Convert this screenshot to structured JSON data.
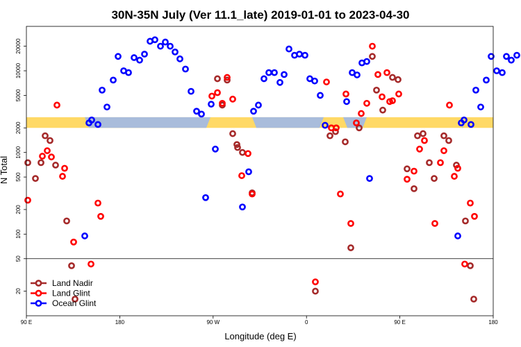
{
  "chart_data": {
    "type": "scatter",
    "title": "30N-35N July (Ver 11.1_late)   2019-01-01 to 2023-04-30",
    "xlabel": "Longitude (deg E)",
    "ylabel": "N Total",
    "y_scale": "log",
    "ylim": [
      10,
      35000
    ],
    "x_ticks": [
      {
        "label": "90 E"
      },
      {
        "label": "180"
      },
      {
        "label": "90 W"
      },
      {
        "label": "0"
      },
      {
        "label": "90 E"
      },
      {
        "label": "180"
      }
    ],
    "y_ticks": [
      {
        "label": "20",
        "value": 20
      },
      {
        "label": "50",
        "value": 50
      },
      {
        "label": "100",
        "value": 100
      },
      {
        "label": "200",
        "value": 200
      },
      {
        "label": "500",
        "value": 500
      },
      {
        "label": "1000",
        "value": 1000
      },
      {
        "label": "2000",
        "value": 2000
      },
      {
        "label": "5000",
        "value": 5000
      },
      {
        "label": "10000",
        "value": 10000
      },
      {
        "label": "20000",
        "value": 20000
      }
    ],
    "reference_line": 50,
    "legend_position": "bottom-left",
    "series": [
      {
        "name": "Land Nadir",
        "color": "#a52a2a",
        "points": [
          [
            2,
            750
          ],
          [
            13,
            480
          ],
          [
            21,
            750
          ],
          [
            27,
            1600
          ],
          [
            34,
            1400
          ],
          [
            42,
            700
          ],
          [
            58,
            145
          ],
          [
            65,
            41
          ],
          [
            70,
            16
          ],
          [
            275,
            8000
          ],
          [
            282,
            3800
          ],
          [
            289,
            7700
          ],
          [
            297,
            1700
          ],
          [
            303,
            1250
          ],
          [
            304,
            1150
          ],
          [
            311,
            1000
          ],
          [
            325,
            320
          ],
          [
            416,
            20
          ],
          [
            437,
            1600
          ],
          [
            445,
            1800
          ],
          [
            459,
            1350
          ],
          [
            467,
            68
          ],
          [
            479,
            2000
          ],
          [
            498,
            15000
          ],
          [
            504,
            5800
          ],
          [
            513,
            3300
          ],
          [
            527,
            8300
          ],
          [
            535,
            7800
          ],
          [
            548,
            630
          ],
          [
            558,
            360
          ],
          [
            563,
            1600
          ],
          [
            571,
            1700
          ],
          [
            580,
            750
          ],
          [
            587,
            480
          ],
          [
            601,
            1600
          ],
          [
            608,
            1400
          ],
          [
            619,
            700
          ],
          [
            632,
            145
          ],
          [
            639,
            41
          ],
          [
            644,
            16
          ]
        ]
      },
      {
        "name": "Land Glint",
        "color": "#ff0000",
        "points": [
          [
            2,
            260
          ],
          [
            23,
            900
          ],
          [
            30,
            1050
          ],
          [
            36,
            880
          ],
          [
            44,
            3800
          ],
          [
            52,
            510
          ],
          [
            55,
            640
          ],
          [
            68,
            80
          ],
          [
            93,
            43
          ],
          [
            103,
            240
          ],
          [
            107,
            165
          ],
          [
            267,
            4900
          ],
          [
            275,
            5400
          ],
          [
            282,
            4000
          ],
          [
            289,
            8300
          ],
          [
            297,
            4500
          ],
          [
            310,
            520
          ],
          [
            319,
            970
          ],
          [
            325,
            310
          ],
          [
            416,
            26
          ],
          [
            432,
            7300
          ],
          [
            439,
            2000
          ],
          [
            446,
            2000
          ],
          [
            452,
            310
          ],
          [
            460,
            5200
          ],
          [
            467,
            135
          ],
          [
            475,
            2300
          ],
          [
            482,
            3000
          ],
          [
            490,
            4000
          ],
          [
            498,
            20000
          ],
          [
            506,
            9000
          ],
          [
            512,
            4800
          ],
          [
            519,
            9500
          ],
          [
            523,
            4200
          ],
          [
            527,
            4300
          ],
          [
            536,
            5200
          ],
          [
            548,
            470
          ],
          [
            558,
            590
          ],
          [
            566,
            1100
          ],
          [
            573,
            1400
          ],
          [
            601,
            1050
          ],
          [
            588,
            135
          ],
          [
            596,
            750
          ],
          [
            609,
            3800
          ],
          [
            616,
            510
          ],
          [
            621,
            640
          ],
          [
            631,
            43
          ],
          [
            639,
            240
          ],
          [
            645,
            165
          ]
        ]
      },
      {
        "name": "Ocean Glint",
        "color": "#0000ff",
        "points": [
          [
            84,
            95
          ],
          [
            90,
            2300
          ],
          [
            94,
            2500
          ],
          [
            103,
            2200
          ],
          [
            109,
            5800
          ],
          [
            116,
            3600
          ],
          [
            125,
            7700
          ],
          [
            132,
            15000
          ],
          [
            140,
            10000
          ],
          [
            147,
            9500
          ],
          [
            155,
            14500
          ],
          [
            163,
            13500
          ],
          [
            170,
            16000
          ],
          [
            178,
            23000
          ],
          [
            185,
            24000
          ],
          [
            193,
            20000
          ],
          [
            200,
            22500
          ],
          [
            207,
            20000
          ],
          [
            214,
            17000
          ],
          [
            221,
            14000
          ],
          [
            229,
            10500
          ],
          [
            237,
            5600
          ],
          [
            245,
            3200
          ],
          [
            252,
            2950
          ],
          [
            258,
            280
          ],
          [
            266,
            3900
          ],
          [
            272,
            1100
          ],
          [
            311,
            215
          ],
          [
            320,
            580
          ],
          [
            327,
            3200
          ],
          [
            334,
            3800
          ],
          [
            342,
            8000
          ],
          [
            349,
            9500
          ],
          [
            357,
            9500
          ],
          [
            365,
            7200
          ],
          [
            371,
            9000
          ],
          [
            378,
            18500
          ],
          [
            386,
            15500
          ],
          [
            393,
            16000
          ],
          [
            401,
            15500
          ],
          [
            408,
            8000
          ],
          [
            415,
            7500
          ],
          [
            423,
            5000
          ],
          [
            430,
            2150
          ],
          [
            461,
            4200
          ],
          [
            469,
            9500
          ],
          [
            476,
            8900
          ],
          [
            483,
            12500
          ],
          [
            490,
            13000
          ],
          [
            494,
            480
          ],
          [
            621,
            95
          ],
          [
            626,
            2300
          ],
          [
            630,
            2500
          ],
          [
            640,
            2200
          ],
          [
            647,
            5800
          ],
          [
            654,
            3600
          ],
          [
            662,
            7700
          ],
          [
            669,
            15000
          ],
          [
            677,
            10000
          ],
          [
            685,
            9500
          ],
          [
            691,
            15000
          ],
          [
            698,
            13500
          ],
          [
            706,
            15500
          ]
        ]
      }
    ],
    "band": {
      "top_value": 2700,
      "bottom_value": 2000,
      "gold": "#ffd966",
      "blue": "#a9bcdb",
      "blue_segments": [
        {
          "x0": 84,
          "x1": 265
        },
        {
          "x0": 325,
          "x1": 428
        },
        {
          "x0": 456,
          "x1": 490
        },
        {
          "x0": 626,
          "x1": 630
        }
      ]
    }
  }
}
